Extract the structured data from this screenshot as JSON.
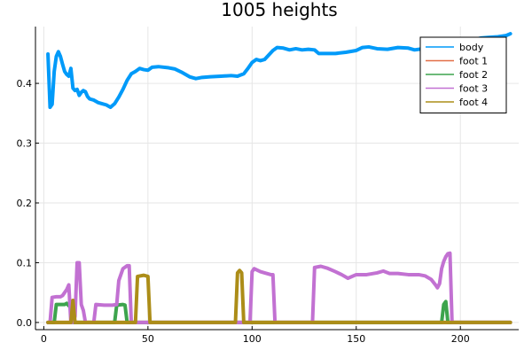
{
  "chart_data": {
    "type": "line",
    "title": "1005 heights",
    "xlabel": "",
    "ylabel": "",
    "xlim": [
      -4,
      228
    ],
    "ylim": [
      -0.012,
      0.495
    ],
    "xticks": [
      0,
      50,
      100,
      150,
      200
    ],
    "yticks": [
      0.0,
      0.1,
      0.2,
      0.3,
      0.4
    ],
    "ytick_labels": [
      "0.0",
      "0.1",
      "0.2",
      "0.3",
      "0.4"
    ],
    "grid": true,
    "legend_position": "top-right",
    "series": [
      {
        "name": "body",
        "color": "#009af9",
        "points": [
          [
            2,
            0.449
          ],
          [
            3,
            0.36
          ],
          [
            4,
            0.365
          ],
          [
            5,
            0.42
          ],
          [
            6,
            0.445
          ],
          [
            7,
            0.453
          ],
          [
            8,
            0.445
          ],
          [
            9,
            0.432
          ],
          [
            10,
            0.42
          ],
          [
            11,
            0.415
          ],
          [
            12,
            0.412
          ],
          [
            13,
            0.425
          ],
          [
            14,
            0.392
          ],
          [
            15,
            0.388
          ],
          [
            16,
            0.39
          ],
          [
            17,
            0.38
          ],
          [
            18,
            0.385
          ],
          [
            19,
            0.388
          ],
          [
            20,
            0.386
          ],
          [
            21,
            0.378
          ],
          [
            22,
            0.374
          ],
          [
            24,
            0.372
          ],
          [
            26,
            0.368
          ],
          [
            28,
            0.366
          ],
          [
            30,
            0.364
          ],
          [
            32,
            0.36
          ],
          [
            34,
            0.366
          ],
          [
            36,
            0.377
          ],
          [
            38,
            0.39
          ],
          [
            40,
            0.405
          ],
          [
            42,
            0.416
          ],
          [
            44,
            0.42
          ],
          [
            46,
            0.425
          ],
          [
            48,
            0.423
          ],
          [
            50,
            0.422
          ],
          [
            52,
            0.427
          ],
          [
            55,
            0.428
          ],
          [
            60,
            0.426
          ],
          [
            63,
            0.424
          ],
          [
            66,
            0.419
          ],
          [
            70,
            0.411
          ],
          [
            73,
            0.408
          ],
          [
            76,
            0.41
          ],
          [
            80,
            0.411
          ],
          [
            85,
            0.412
          ],
          [
            90,
            0.413
          ],
          [
            93,
            0.412
          ],
          [
            96,
            0.416
          ],
          [
            98,
            0.425
          ],
          [
            100,
            0.435
          ],
          [
            102,
            0.44
          ],
          [
            104,
            0.438
          ],
          [
            106,
            0.44
          ],
          [
            110,
            0.455
          ],
          [
            112,
            0.46
          ],
          [
            115,
            0.459
          ],
          [
            118,
            0.456
          ],
          [
            121,
            0.458
          ],
          [
            124,
            0.456
          ],
          [
            127,
            0.457
          ],
          [
            130,
            0.456
          ],
          [
            132,
            0.45
          ],
          [
            135,
            0.45
          ],
          [
            140,
            0.45
          ],
          [
            145,
            0.452
          ],
          [
            150,
            0.455
          ],
          [
            153,
            0.46
          ],
          [
            156,
            0.461
          ],
          [
            160,
            0.458
          ],
          [
            165,
            0.457
          ],
          [
            170,
            0.46
          ],
          [
            175,
            0.459
          ],
          [
            178,
            0.456
          ],
          [
            182,
            0.458
          ],
          [
            186,
            0.456
          ],
          [
            190,
            0.46
          ],
          [
            194,
            0.462
          ],
          [
            198,
            0.466
          ],
          [
            202,
            0.47
          ],
          [
            206,
            0.473
          ],
          [
            210,
            0.476
          ],
          [
            214,
            0.477
          ],
          [
            218,
            0.478
          ],
          [
            222,
            0.48
          ],
          [
            224,
            0.483
          ]
        ]
      },
      {
        "name": "foot 1",
        "color": "#e26f46",
        "points": [
          [
            2,
            0
          ],
          [
            224,
            0
          ]
        ]
      },
      {
        "name": "foot 2",
        "color": "#3da44d",
        "points": [
          [
            2,
            0
          ],
          [
            5,
            0
          ],
          [
            6,
            0.03
          ],
          [
            10,
            0.03
          ],
          [
            11,
            0.032
          ],
          [
            12,
            0.028
          ],
          [
            13,
            0.03
          ],
          [
            14,
            0
          ],
          [
            34,
            0
          ],
          [
            35,
            0.029
          ],
          [
            38,
            0.03
          ],
          [
            39,
            0.029
          ],
          [
            40,
            0
          ],
          [
            191,
            0
          ],
          [
            192,
            0.03
          ],
          [
            193,
            0.035
          ],
          [
            194,
            0
          ],
          [
            224,
            0
          ]
        ]
      },
      {
        "name": "foot 3",
        "color": "#c271d2",
        "points": [
          [
            2,
            0
          ],
          [
            3,
            0
          ],
          [
            4,
            0.042
          ],
          [
            6,
            0.043
          ],
          [
            8,
            0.043
          ],
          [
            9,
            0.045
          ],
          [
            11,
            0.055
          ],
          [
            12,
            0.063
          ],
          [
            13,
            0
          ],
          [
            14,
            0
          ],
          [
            15,
            0.01
          ],
          [
            16,
            0.1
          ],
          [
            17,
            0.1
          ],
          [
            18,
            0.03
          ],
          [
            19,
            0.02
          ],
          [
            20,
            0
          ],
          [
            24,
            0
          ],
          [
            25,
            0.03
          ],
          [
            29,
            0.029
          ],
          [
            33,
            0.029
          ],
          [
            35,
            0.03
          ],
          [
            36,
            0.07
          ],
          [
            38,
            0.09
          ],
          [
            40,
            0.095
          ],
          [
            41,
            0.095
          ],
          [
            42,
            0
          ],
          [
            99,
            0
          ],
          [
            100,
            0.085
          ],
          [
            101,
            0.09
          ],
          [
            104,
            0.085
          ],
          [
            106,
            0.083
          ],
          [
            109,
            0.08
          ],
          [
            110,
            0.08
          ],
          [
            111,
            0
          ],
          [
            129,
            0
          ],
          [
            130,
            0.092
          ],
          [
            133,
            0.094
          ],
          [
            136,
            0.091
          ],
          [
            140,
            0.085
          ],
          [
            143,
            0.08
          ],
          [
            146,
            0.074
          ],
          [
            150,
            0.08
          ],
          [
            155,
            0.08
          ],
          [
            160,
            0.083
          ],
          [
            163,
            0.086
          ],
          [
            166,
            0.082
          ],
          [
            170,
            0.082
          ],
          [
            175,
            0.08
          ],
          [
            180,
            0.08
          ],
          [
            183,
            0.078
          ],
          [
            186,
            0.072
          ],
          [
            188,
            0.063
          ],
          [
            189,
            0.058
          ],
          [
            190,
            0.065
          ],
          [
            191,
            0.09
          ],
          [
            192,
            0.102
          ],
          [
            193,
            0.11
          ],
          [
            194,
            0.115
          ],
          [
            195,
            0.116
          ],
          [
            196,
            0
          ],
          [
            224,
            0
          ]
        ]
      },
      {
        "name": "foot 4",
        "color": "#ac8d18",
        "points": [
          [
            2,
            0
          ],
          [
            13,
            0
          ],
          [
            14,
            0.037
          ],
          [
            15,
            0
          ],
          [
            44,
            0
          ],
          [
            45,
            0.077
          ],
          [
            48,
            0.079
          ],
          [
            50,
            0.077
          ],
          [
            51,
            0
          ],
          [
            92,
            0
          ],
          [
            93,
            0.083
          ],
          [
            94,
            0.087
          ],
          [
            95,
            0.083
          ],
          [
            96,
            0
          ],
          [
            224,
            0
          ]
        ]
      }
    ]
  }
}
